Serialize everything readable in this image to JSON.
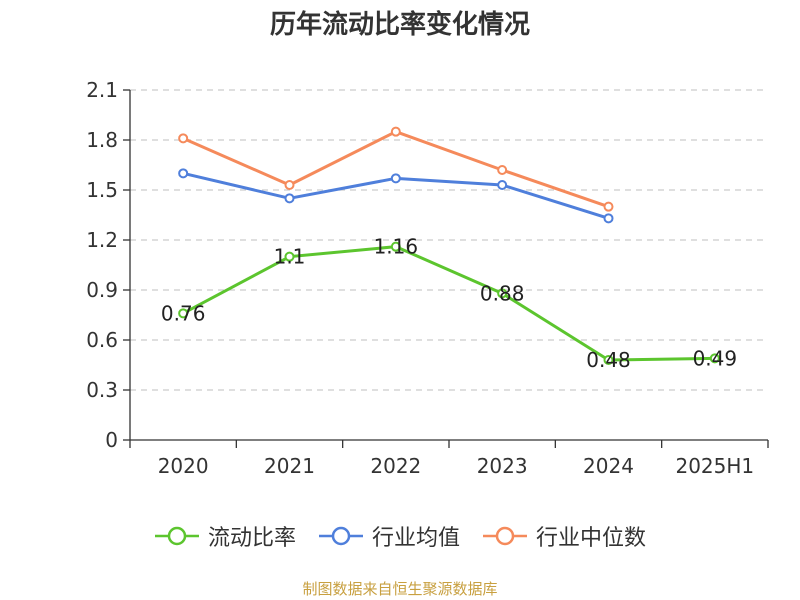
{
  "title": "历年流动比率变化情况",
  "source": "制图数据来自恒生聚源数据库",
  "colors": {
    "title": "#333333",
    "axis": "#333333",
    "grid": "#cccccc",
    "source": "#c8a040"
  },
  "chart_data": {
    "type": "line",
    "title": "历年流动比率变化情况",
    "categories": [
      "2020",
      "2021",
      "2022",
      "2023",
      "2024",
      "2025H1"
    ],
    "ylim": [
      0,
      2.1
    ],
    "yticks": [
      "0",
      "0.3",
      "0.6",
      "0.9",
      "1.2",
      "1.5",
      "1.8",
      "2.1"
    ],
    "grid": true,
    "legend_position": "bottom",
    "series": [
      {
        "name": "流动比率",
        "color": "#5cc52e",
        "values": [
          0.76,
          1.1,
          1.16,
          0.88,
          0.48,
          0.49
        ],
        "labels": [
          "0.76",
          "1.1",
          "1.16",
          "0.88",
          "0.48",
          "0.49"
        ]
      },
      {
        "name": "行业均值",
        "color": "#4f7fdb",
        "values": [
          1.6,
          1.45,
          1.57,
          1.53,
          1.33,
          null
        ]
      },
      {
        "name": "行业中位数",
        "color": "#f58a5b",
        "values": [
          1.81,
          1.53,
          1.85,
          1.62,
          1.4,
          null
        ]
      }
    ]
  }
}
